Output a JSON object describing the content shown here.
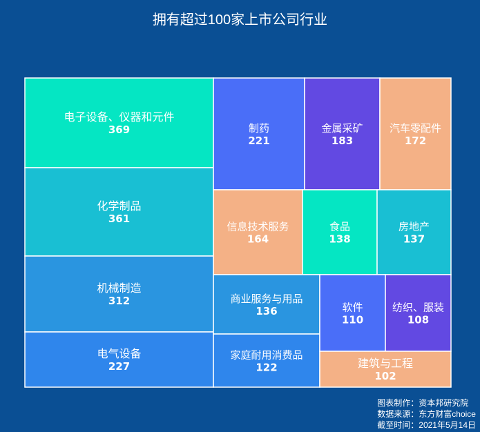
{
  "chart_data": {
    "type": "treemap",
    "title": "拥有超过100家上市公司行业",
    "items": [
      {
        "name": "电子设备、仪器和元件",
        "value": 369,
        "color": "#05e6c3"
      },
      {
        "name": "化学制品",
        "value": 361,
        "color": "#19bfd3"
      },
      {
        "name": "机械制造",
        "value": 312,
        "color": "#2a95e0"
      },
      {
        "name": "电气设备",
        "value": 227,
        "color": "#2f86ec"
      },
      {
        "name": "制药",
        "value": 221,
        "color": "#4a6ef8"
      },
      {
        "name": "金属采矿",
        "value": 183,
        "color": "#6249e2"
      },
      {
        "name": "汽车零配件",
        "value": 172,
        "color": "#f4b186"
      },
      {
        "name": "信息技术服务",
        "value": 164,
        "color": "#f4b186"
      },
      {
        "name": "食品",
        "value": 138,
        "color": "#05e6c3"
      },
      {
        "name": "房地产",
        "value": 137,
        "color": "#19bfd3"
      },
      {
        "name": "商业服务与用品",
        "value": 136,
        "color": "#2a95e0"
      },
      {
        "name": "家庭耐用消费品",
        "value": 122,
        "color": "#2f86ec"
      },
      {
        "name": "软件",
        "value": 110,
        "color": "#4a6ef8"
      },
      {
        "name": "纺织、服装",
        "value": 108,
        "color": "#6249e2"
      },
      {
        "name": "建筑与工程",
        "value": 102,
        "color": "#f4b186"
      }
    ]
  },
  "footer": {
    "line1": "图表制作：资本邦研究院",
    "line2": "数据来源：东方财富choice",
    "line3": "截至时间：2021年5月14日"
  }
}
